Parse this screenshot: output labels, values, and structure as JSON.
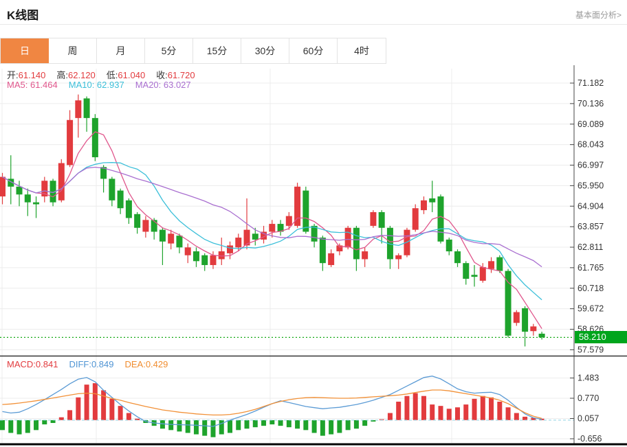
{
  "header": {
    "title": "K线图",
    "link": "基本面分析>"
  },
  "tabs": {
    "items": [
      "日",
      "周",
      "月",
      "5分",
      "15分",
      "30分",
      "60分",
      "4时"
    ],
    "active_index": 0,
    "active_color": "#f08642"
  },
  "main_legend": {
    "ohlc": [
      {
        "label": "开",
        "value": "61.140"
      },
      {
        "label": "高",
        "value": "62.120"
      },
      {
        "label": "低",
        "value": "61.040"
      },
      {
        "label": "收",
        "value": "61.720"
      }
    ],
    "ohlc_label_color": "#333333",
    "ohlc_value_color": "#e23b3e",
    "ma": [
      {
        "label": "MA5",
        "value": "61.464",
        "color": "#e0568c"
      },
      {
        "label": "MA10",
        "value": "62.937",
        "color": "#3bbfd9"
      },
      {
        "label": "MA20",
        "value": "63.027",
        "color": "#a96fd0"
      }
    ]
  },
  "macd_legend": [
    {
      "label": "MACD",
      "value": "0.841",
      "color": "#e23b3e"
    },
    {
      "label": "DIFF",
      "value": "0.849",
      "color": "#4f94d4"
    },
    {
      "label": "DEA",
      "value": "0.429",
      "color": "#f08c2e"
    }
  ],
  "chart_data": {
    "type": "candlestick+macd",
    "colors": {
      "up": "#e23b3e",
      "down": "#1ea32c",
      "ma5": "#e0568c",
      "ma10": "#3bbfd9",
      "ma20": "#a96fd0",
      "diff": "#5b9bd5",
      "dea": "#f29036",
      "grid": "#ececec",
      "axis": "#444444",
      "price_line": "#12a812",
      "price_tag_bg": "#00a51c",
      "macd_zero_dash": "#8ed4e4"
    },
    "main": {
      "axis_ticks": [
        71.182,
        70.136,
        69.089,
        68.043,
        66.997,
        65.95,
        64.904,
        63.857,
        62.811,
        61.765,
        60.718,
        59.672,
        58.626,
        57.579
      ],
      "last_price": 58.21,
      "last_price_label": "58.210",
      "ma_periods": [
        5,
        10,
        20
      ],
      "candles": [
        [
          65.4,
          66.4,
          65.0,
          66.6
        ],
        [
          66.3,
          65.9,
          65.0,
          67.5
        ],
        [
          65.9,
          65.5,
          64.9,
          66.2
        ],
        [
          65.5,
          65.1,
          64.4,
          65.8
        ],
        [
          65.1,
          65.0,
          64.3,
          65.4
        ],
        [
          65.4,
          66.2,
          65.1,
          66.4
        ],
        [
          66.2,
          65.1,
          64.9,
          66.3
        ],
        [
          65.2,
          67.1,
          65.1,
          67.3
        ],
        [
          67.0,
          69.3,
          66.9,
          69.8
        ],
        [
          69.4,
          70.3,
          68.4,
          70.6
        ],
        [
          70.4,
          69.4,
          68.7,
          70.5
        ],
        [
          69.4,
          67.4,
          67.2,
          69.6
        ],
        [
          66.9,
          66.3,
          65.6,
          67.0
        ],
        [
          66.3,
          65.2,
          64.9,
          66.4
        ],
        [
          65.7,
          64.8,
          64.5,
          65.8
        ],
        [
          65.2,
          64.3,
          64.0,
          65.3
        ],
        [
          64.5,
          63.8,
          63.5,
          64.6
        ],
        [
          63.6,
          64.2,
          63.3,
          64.4
        ],
        [
          64.2,
          63.6,
          63.2,
          64.3
        ],
        [
          63.7,
          63.1,
          61.9,
          63.8
        ],
        [
          63.0,
          63.5,
          62.7,
          63.7
        ],
        [
          63.4,
          62.8,
          62.5,
          63.5
        ],
        [
          62.4,
          62.8,
          62.0,
          63.0
        ],
        [
          62.6,
          62.1,
          61.8,
          62.8
        ],
        [
          62.4,
          61.9,
          61.6,
          62.5
        ],
        [
          61.9,
          62.4,
          61.7,
          62.6
        ],
        [
          62.2,
          62.6,
          61.9,
          63.3
        ],
        [
          62.5,
          62.9,
          62.2,
          63.1
        ],
        [
          62.8,
          63.3,
          62.6,
          63.5
        ],
        [
          62.9,
          63.7,
          62.7,
          65.3
        ],
        [
          63.5,
          63.2,
          62.9,
          63.8
        ],
        [
          63.2,
          63.6,
          63.0,
          63.9
        ],
        [
          63.6,
          64.0,
          63.3,
          64.2
        ],
        [
          64.0,
          63.6,
          63.4,
          64.2
        ],
        [
          63.9,
          64.4,
          63.7,
          64.6
        ],
        [
          63.9,
          65.9,
          63.8,
          66.1
        ],
        [
          65.7,
          63.6,
          63.5,
          65.9
        ],
        [
          63.9,
          63.1,
          62.8,
          64.0
        ],
        [
          63.3,
          62.0,
          61.6,
          63.4
        ],
        [
          61.9,
          62.5,
          61.8,
          62.7
        ],
        [
          62.6,
          62.9,
          62.4,
          63.0
        ],
        [
          62.8,
          63.8,
          62.7,
          63.9
        ],
        [
          63.8,
          62.2,
          61.6,
          63.9
        ],
        [
          62.2,
          62.6,
          61.8,
          62.8
        ],
        [
          63.9,
          64.6,
          63.8,
          64.7
        ],
        [
          64.6,
          63.8,
          63.0,
          64.7
        ],
        [
          63.8,
          62.2,
          61.7,
          63.9
        ],
        [
          62.2,
          62.4,
          61.7,
          62.5
        ],
        [
          62.4,
          63.7,
          62.3,
          63.8
        ],
        [
          63.7,
          64.8,
          63.6,
          65.0
        ],
        [
          64.7,
          65.2,
          64.5,
          65.4
        ],
        [
          65.3,
          65.1,
          64.6,
          66.2
        ],
        [
          65.4,
          63.1,
          63.0,
          65.5
        ],
        [
          63.2,
          62.6,
          62.4,
          63.3
        ],
        [
          62.6,
          62.0,
          61.8,
          62.7
        ],
        [
          62.0,
          61.2,
          60.9,
          62.1
        ],
        [
          61.4,
          61.3,
          60.8,
          61.9
        ],
        [
          61.1,
          61.8,
          61.0,
          62.0
        ],
        [
          61.7,
          62.1,
          61.5,
          62.3
        ],
        [
          62.3,
          61.6,
          61.5,
          62.4
        ],
        [
          61.6,
          58.3,
          58.2,
          61.7
        ],
        [
          58.95,
          59.5,
          58.8,
          59.6
        ],
        [
          59.7,
          58.5,
          57.75,
          59.8
        ],
        [
          58.53,
          58.77,
          58.3,
          58.9
        ],
        [
          58.4,
          58.21,
          58.1,
          58.5
        ]
      ]
    },
    "macd": {
      "axis_ticks": [
        1.483,
        0.77,
        0.057,
        -0.656
      ],
      "histogram": [
        -0.35,
        -0.45,
        -0.5,
        -0.45,
        -0.35,
        -0.15,
        -0.1,
        0.1,
        0.35,
        0.8,
        1.25,
        1.3,
        1.05,
        0.75,
        0.5,
        0.25,
        0.05,
        -0.1,
        -0.2,
        -0.3,
        -0.35,
        -0.4,
        -0.45,
        -0.5,
        -0.55,
        -0.6,
        -0.5,
        -0.45,
        -0.35,
        -0.3,
        -0.25,
        -0.2,
        -0.15,
        -0.2,
        -0.25,
        -0.3,
        -0.35,
        -0.45,
        -0.55,
        -0.5,
        -0.45,
        -0.35,
        -0.3,
        -0.2,
        -0.05,
        0.03,
        0.25,
        0.65,
        0.85,
        0.95,
        0.85,
        0.55,
        0.5,
        0.4,
        0.45,
        0.55,
        0.75,
        0.85,
        0.8,
        0.65,
        0.45,
        0.25,
        0.12,
        0.08,
        0.05
      ],
      "diff": [
        0.3,
        0.25,
        0.28,
        0.4,
        0.55,
        0.72,
        0.9,
        1.08,
        1.28,
        1.44,
        1.5,
        1.35,
        1.05,
        0.8,
        0.55,
        0.32,
        0.12,
        -0.05,
        -0.1,
        -0.13,
        -0.15,
        -0.16,
        -0.17,
        -0.18,
        -0.2,
        -0.22,
        -0.12,
        0.0,
        0.1,
        0.2,
        0.32,
        0.45,
        0.58,
        0.68,
        0.62,
        0.55,
        0.48,
        0.44,
        0.4,
        0.43,
        0.45,
        0.5,
        0.55,
        0.62,
        0.7,
        0.8,
        0.9,
        1.05,
        1.2,
        1.35,
        1.5,
        1.55,
        1.45,
        1.28,
        1.1,
        1.0,
        0.95,
        0.97,
        0.98,
        0.9,
        0.7,
        0.45,
        0.22,
        0.08,
        0.03
      ],
      "dea": [
        0.55,
        0.57,
        0.6,
        0.64,
        0.68,
        0.73,
        0.78,
        0.83,
        0.88,
        0.93,
        0.95,
        0.93,
        0.85,
        0.76,
        0.7,
        0.62,
        0.55,
        0.48,
        0.42,
        0.36,
        0.32,
        0.28,
        0.25,
        0.22,
        0.2,
        0.18,
        0.18,
        0.2,
        0.24,
        0.3,
        0.38,
        0.48,
        0.58,
        0.66,
        0.72,
        0.76,
        0.79,
        0.8,
        0.79,
        0.78,
        0.77,
        0.77,
        0.78,
        0.8,
        0.82,
        0.84,
        0.86,
        0.88,
        0.92,
        0.97,
        1.02,
        1.06,
        1.06,
        1.03,
        0.98,
        0.93,
        0.88,
        0.83,
        0.78,
        0.7,
        0.58,
        0.42,
        0.26,
        0.14,
        0.06
      ]
    }
  }
}
